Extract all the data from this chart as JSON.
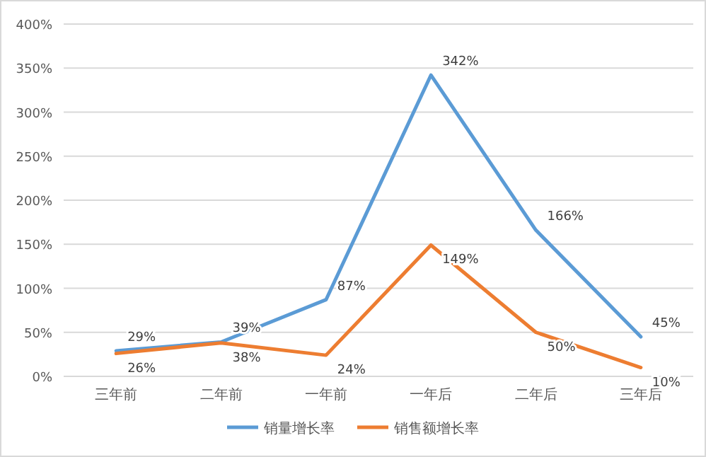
{
  "chart_data": {
    "type": "line",
    "categories": [
      "三年前",
      "二年前",
      "一年前",
      "一年后",
      "二年后",
      "三年后"
    ],
    "series": [
      {
        "name": "销量增长率",
        "color": "#5b9bd5",
        "values": [
          29,
          39,
          87,
          342,
          166,
          45
        ],
        "value_labels": [
          "29%",
          "39%",
          "87%",
          "342%",
          "166%",
          "45%"
        ]
      },
      {
        "name": "销售额增长率",
        "color": "#ed7d31",
        "values": [
          26,
          38,
          24,
          149,
          50,
          10
        ],
        "value_labels": [
          "26%",
          "38%",
          "24%",
          "149%",
          "50%",
          "10%"
        ]
      }
    ],
    "ylim": [
      0,
      400
    ],
    "yticks": [
      {
        "value": 0,
        "label": "0%"
      },
      {
        "value": 50,
        "label": "50%"
      },
      {
        "value": 100,
        "label": "100%"
      },
      {
        "value": 150,
        "label": "150%"
      },
      {
        "value": 200,
        "label": "200%"
      },
      {
        "value": 250,
        "label": "250%"
      },
      {
        "value": 300,
        "label": "300%"
      },
      {
        "value": 350,
        "label": "350%"
      },
      {
        "value": 400,
        "label": "400%"
      }
    ],
    "grid": "y",
    "legend": "bottom",
    "marker": "none",
    "line_style": "solid"
  }
}
